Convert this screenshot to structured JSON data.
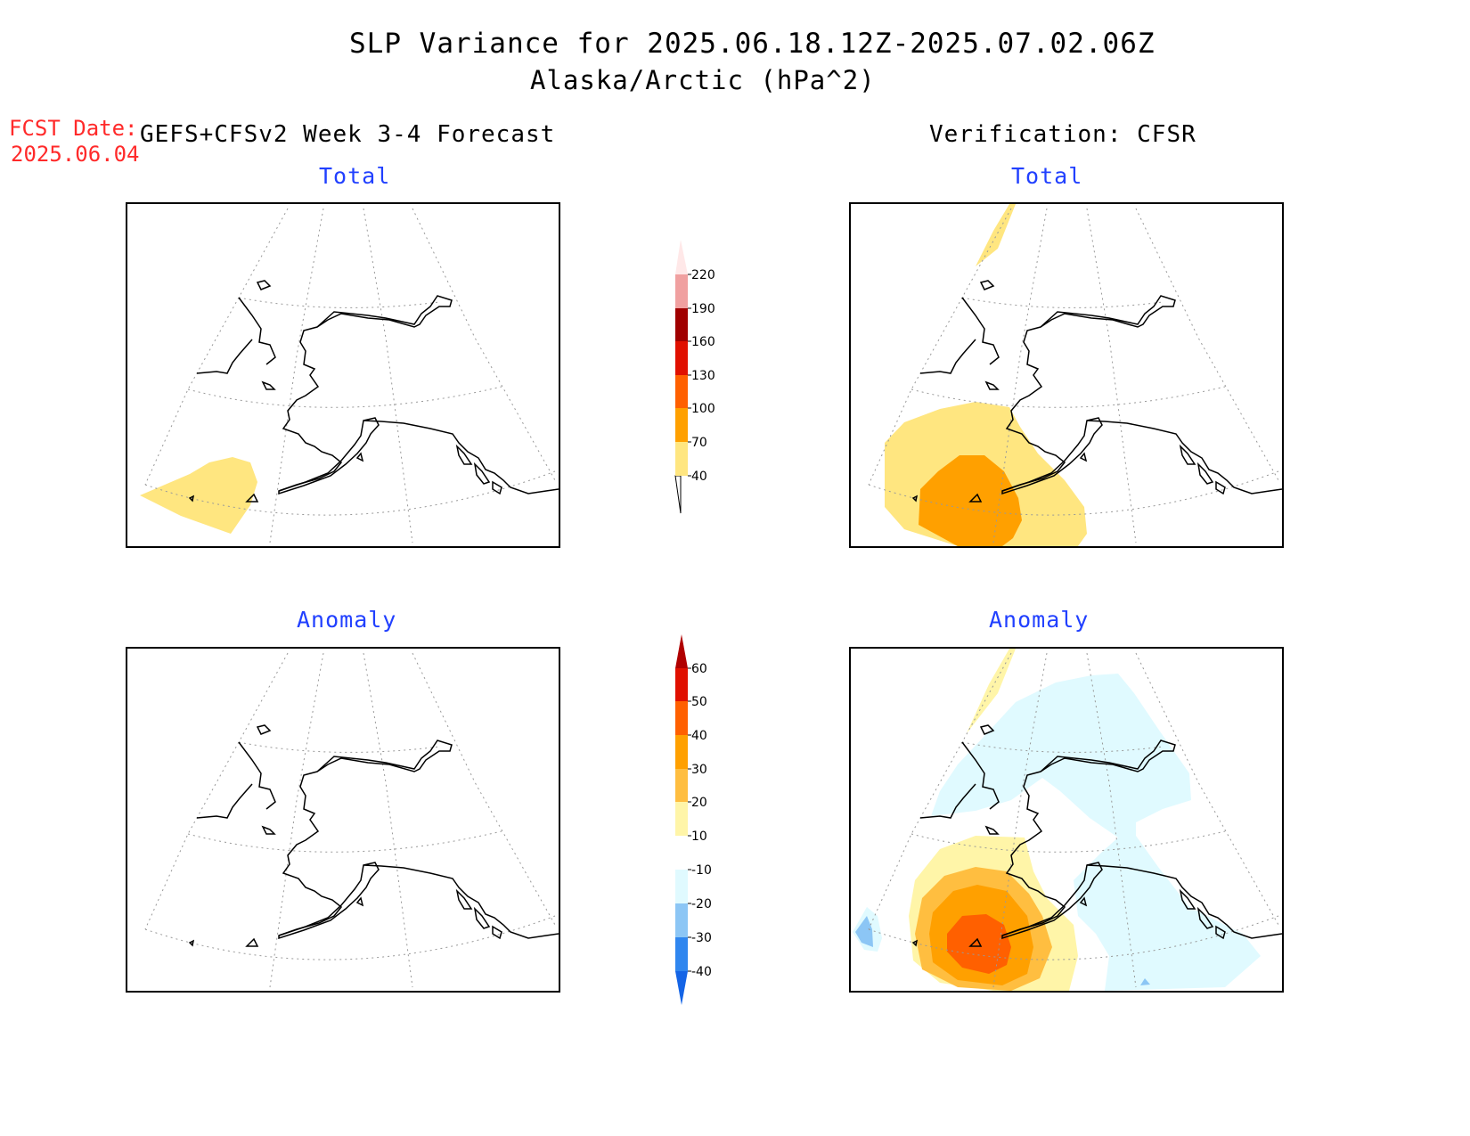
{
  "header": {
    "title": "SLP Variance for 2025.06.18.12Z-2025.07.02.06Z",
    "subtitle": "Alaska/Arctic (hPa^2)",
    "fcst_label": "FCST Date:",
    "fcst_date": "2025.06.04",
    "left_heading": "GEFS+CFSv2 Week 3-4 Forecast",
    "right_heading": "Verification: CFSR"
  },
  "panels": {
    "top_left_title": "Total",
    "top_right_title": "Total",
    "bottom_left_title": "Anomaly",
    "bottom_right_title": "Anomaly"
  },
  "colorbars": {
    "total": {
      "labels": [
        "40",
        "70",
        "100",
        "130",
        "160",
        "190",
        "220"
      ],
      "colors": [
        "#ffe680",
        "#ffa000",
        "#ff6000",
        "#e01000",
        "#a00000",
        "#f0a0a0",
        "#ffe8e8"
      ]
    },
    "anomaly": {
      "labels": [
        "-40",
        "-30",
        "-20",
        "-10",
        "10",
        "20",
        "30",
        "40",
        "50",
        "60"
      ],
      "colors": [
        "#1464e6",
        "#2f86ef",
        "#8cc6f5",
        "#e0faff",
        "#ffffff",
        "#fff5a8",
        "#ffbe40",
        "#ffa000",
        "#ff6000",
        "#e01000",
        "#b00000"
      ]
    }
  }
}
